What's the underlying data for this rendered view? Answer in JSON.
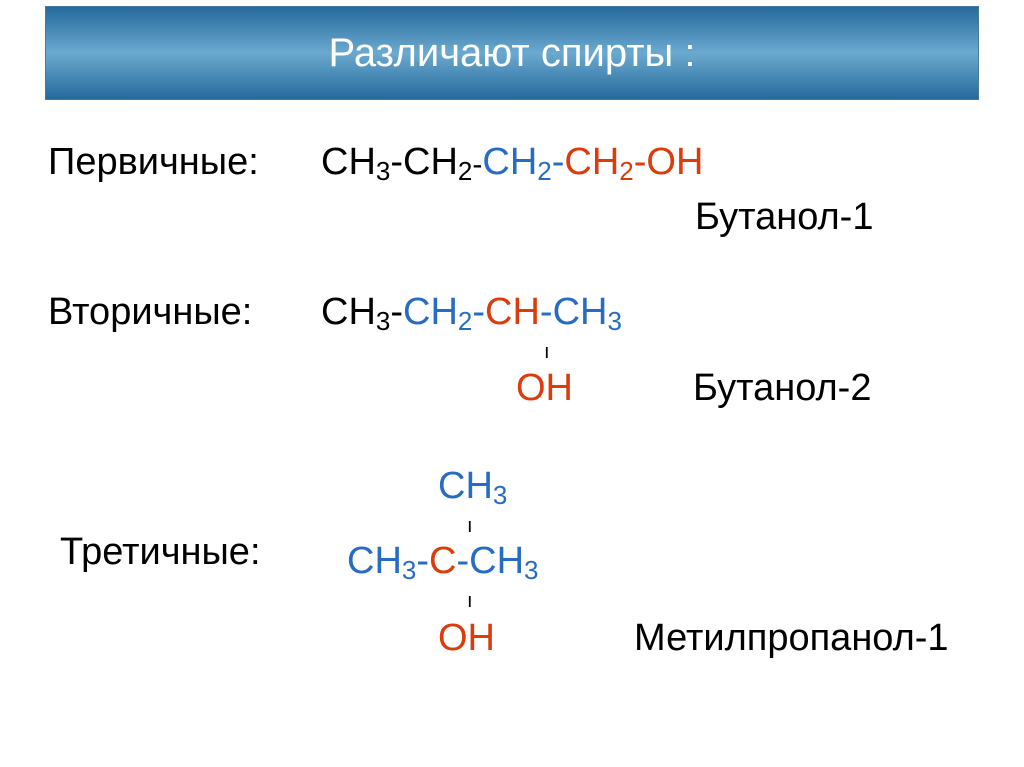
{
  "title": "Различают спирты :",
  "colors": {
    "black": "#000000",
    "blue": "#266cc4",
    "red": "#dc3b0b",
    "title_bg_top": "#256a9c",
    "title_bg_mid": "#6ba9cf",
    "title_text": "#ffffff",
    "page_bg": "#ffffff"
  },
  "typography": {
    "title_fontsize": 40,
    "body_fontsize": 38,
    "sub_fontsize": 26,
    "bond_fontsize": 20
  },
  "rows": {
    "primary": {
      "label": "Первичные:",
      "formula_parts": [
        {
          "text": "CH",
          "color": "black"
        },
        {
          "text": "3",
          "color": "black",
          "sub": true
        },
        {
          "text": "-",
          "color": "black"
        },
        {
          "text": "CH",
          "color": "black"
        },
        {
          "text": "2",
          "color": "black",
          "sub": true
        },
        {
          "text": "-",
          "color": "black",
          "small": true
        },
        {
          "text": "CH",
          "color": "blue"
        },
        {
          "text": "2",
          "color": "blue",
          "sub": true
        },
        {
          "text": "-",
          "color": "blue"
        },
        {
          "text": "CH",
          "color": "red"
        },
        {
          "text": "2",
          "color": "red",
          "sub": true
        },
        {
          "text": "-",
          "color": "red"
        },
        {
          "text": "OH",
          "color": "red"
        }
      ],
      "name": "Бутанол-1"
    },
    "secondary": {
      "label": "Вторичные:",
      "formula_parts": [
        {
          "text": "CH",
          "color": "black"
        },
        {
          "text": "3",
          "color": "black",
          "sub": true
        },
        {
          "text": "-",
          "color": "black"
        },
        {
          "text": "CH",
          "color": "blue"
        },
        {
          "text": "2",
          "color": "blue",
          "sub": true
        },
        {
          "text": "-",
          "color": "blue"
        },
        {
          "text": "CH",
          "color": "red"
        },
        {
          "text": "-",
          "color": "blue"
        },
        {
          "text": "CH",
          "color": "blue"
        },
        {
          "text": "3",
          "color": "blue",
          "sub": true
        }
      ],
      "branch": {
        "text": "OH",
        "color": "red"
      },
      "name": "Бутанол-2"
    },
    "tertiary": {
      "label": "Третичные:",
      "top_branch": {
        "parts": [
          {
            "text": "CH",
            "color": "blue"
          },
          {
            "text": "3",
            "color": "blue",
            "sub": true
          }
        ]
      },
      "formula_parts": [
        {
          "text": "CH",
          "color": "blue"
        },
        {
          "text": "3",
          "color": "blue",
          "sub": true
        },
        {
          "text": "-",
          "color": "blue"
        },
        {
          "text": "C",
          "color": "red"
        },
        {
          "text": "-",
          "color": "blue"
        },
        {
          "text": "CH",
          "color": "blue"
        },
        {
          "text": "3",
          "color": "blue",
          "sub": true
        }
      ],
      "bottom_branch": {
        "text": "OH",
        "color": "red"
      },
      "name": "Метилпропанол-1"
    }
  }
}
